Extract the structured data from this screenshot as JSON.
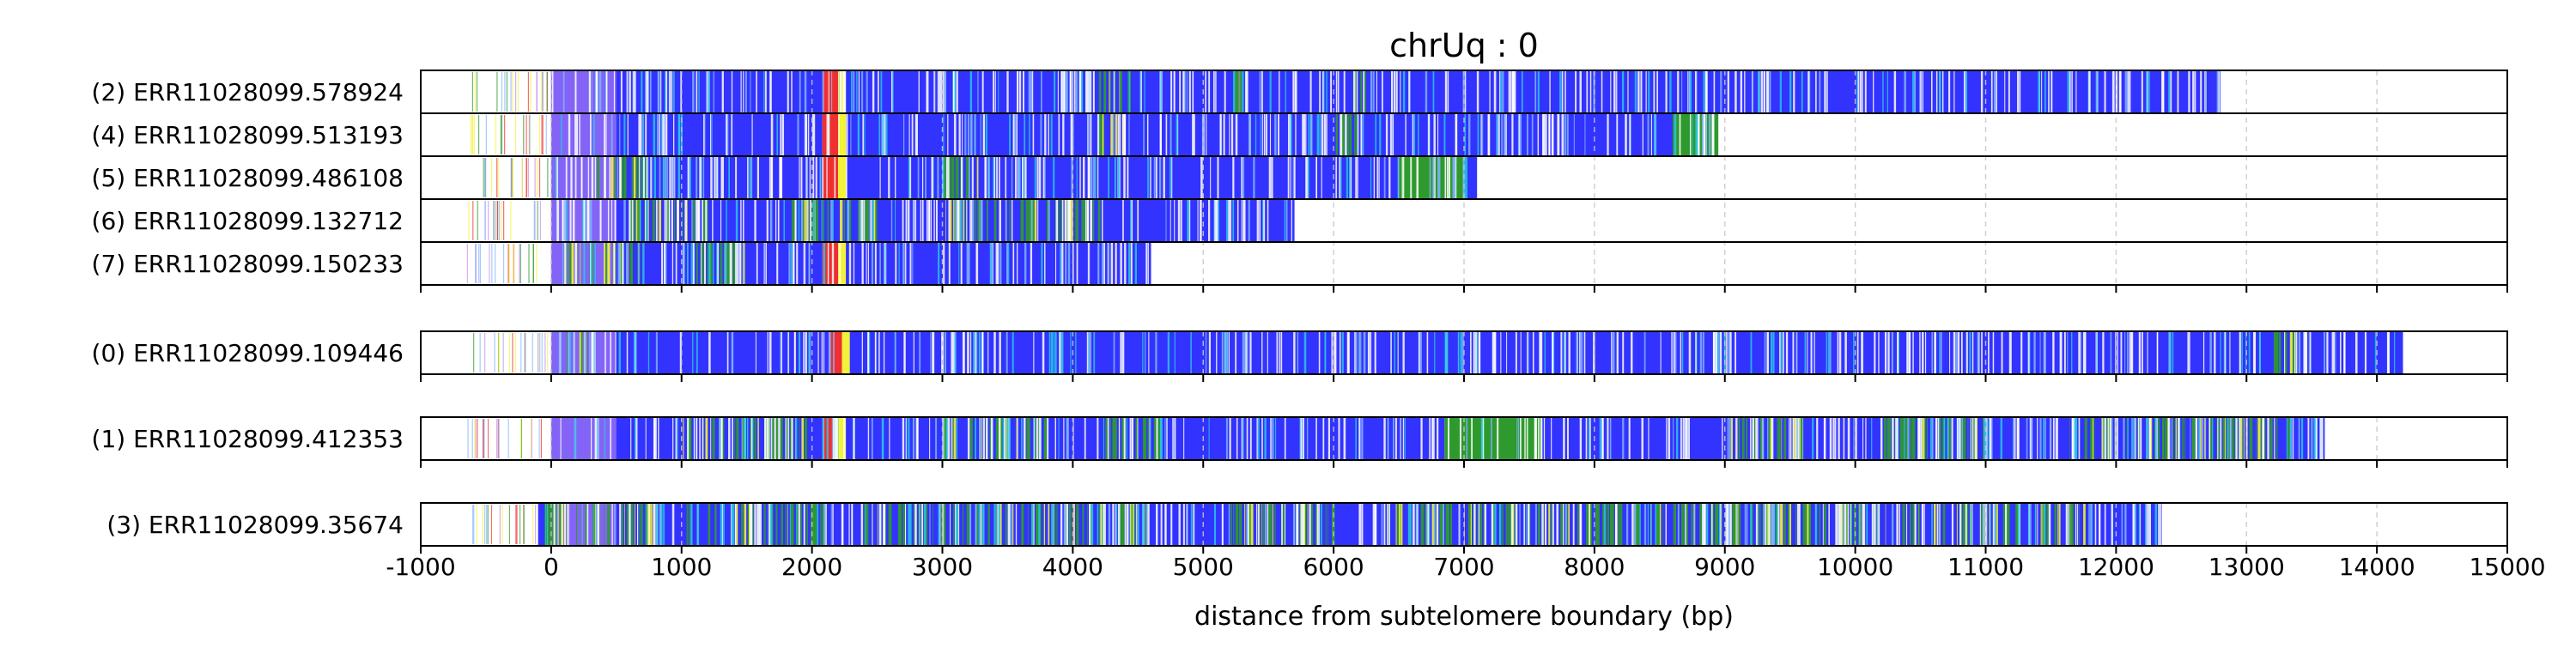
{
  "chart_data": {
    "type": "bar",
    "subtype": "read-alignment-tracks",
    "title": "chrUq : 0",
    "xlabel": "distance from subtelomere boundary (bp)",
    "ylabel": "",
    "xlim": [
      -1000,
      15000
    ],
    "xticks": [
      -1000,
      0,
      1000,
      2000,
      3000,
      4000,
      5000,
      6000,
      7000,
      8000,
      9000,
      10000,
      11000,
      12000,
      13000,
      14000,
      15000
    ],
    "grid": "vertical dashed at each 1000 bp",
    "colors": {
      "blue": "#3333ff",
      "green": "#2e9a2e",
      "yellow": "#f2f23a",
      "red": "#f03030",
      "purple": "#c58df0",
      "lightblue": "#7fb2ff",
      "cyan": "#29c6e6",
      "grid": "#c8c8c8"
    },
    "groups": [
      {
        "reads": [
          {
            "label": "(2) ERR11028099.578924",
            "end": 12800,
            "segments": [
              [
                0,
                2080,
                "blue"
              ],
              [
                2080,
                2200,
                "red"
              ],
              [
                2200,
                2260,
                "yellow"
              ],
              [
                2260,
                12800,
                "blue"
              ]
            ],
            "green_bands": [
              [
                4200,
                4450
              ],
              [
                5200,
                5350
              ],
              [
                6100,
                6250
              ]
            ]
          },
          {
            "label": "(4) ERR11028099.513193",
            "end": 8950,
            "segments": [
              [
                0,
                2080,
                "blue"
              ],
              [
                2080,
                2200,
                "red"
              ],
              [
                2200,
                2260,
                "yellow"
              ],
              [
                2260,
                8600,
                "blue"
              ],
              [
                8600,
                8950,
                "green"
              ]
            ],
            "green_bands": [
              [
                4200,
                4400
              ],
              [
                6000,
                6200
              ]
            ]
          },
          {
            "label": "(5) ERR11028099.486108",
            "end": 7100,
            "segments": [
              [
                0,
                2080,
                "blue"
              ],
              [
                2080,
                2200,
                "red"
              ],
              [
                2200,
                2260,
                "yellow"
              ],
              [
                2260,
                6500,
                "blue"
              ],
              [
                6500,
                7000,
                "green"
              ],
              [
                7000,
                7100,
                "blue"
              ]
            ],
            "green_bands": [
              [
                350,
                800
              ],
              [
                3000,
                3300
              ]
            ]
          },
          {
            "label": "(6) ERR11028099.132712",
            "end": 5700,
            "segments": [
              [
                0,
                5700,
                "blue"
              ]
            ],
            "green_bands": [
              [
                600,
                1200
              ],
              [
                1800,
                2500
              ],
              [
                3000,
                4200
              ]
            ]
          },
          {
            "label": "(7) ERR11028099.150233",
            "end": 4600,
            "segments": [
              [
                0,
                2080,
                "blue"
              ],
              [
                2080,
                2200,
                "red"
              ],
              [
                2200,
                2260,
                "yellow"
              ],
              [
                2260,
                4600,
                "blue"
              ]
            ],
            "green_bands": [
              [
                100,
                700
              ],
              [
                1100,
                1500
              ]
            ]
          }
        ]
      },
      {
        "reads": [
          {
            "label": "(0) ERR11028099.109446",
            "end": 14200,
            "segments": [
              [
                0,
                2130,
                "blue"
              ],
              [
                2130,
                2230,
                "red"
              ],
              [
                2230,
                2290,
                "yellow"
              ],
              [
                2290,
                14200,
                "blue"
              ]
            ],
            "green_bands": [
              [
                100,
                300
              ],
              [
                13200,
                13400
              ]
            ]
          }
        ]
      },
      {
        "reads": [
          {
            "label": "(1) ERR11028099.412353",
            "end": 13600,
            "segments": [
              [
                0,
                2080,
                "blue"
              ],
              [
                2080,
                2200,
                "red"
              ],
              [
                2200,
                2260,
                "yellow"
              ],
              [
                2260,
                6850,
                "blue"
              ],
              [
                6850,
                7600,
                "green"
              ],
              [
                7600,
                13600,
                "blue"
              ]
            ],
            "green_bands": [
              [
                1000,
                2000
              ],
              [
                3000,
                3800
              ],
              [
                4200,
                4700
              ],
              [
                9000,
                9600
              ],
              [
                10200,
                11000
              ],
              [
                11600,
                13400
              ]
            ]
          }
        ]
      },
      {
        "reads": [
          {
            "label": "(3) ERR11028099.35674",
            "end": 12350,
            "start": -100,
            "segments": [
              [
                -100,
                12350,
                "blue"
              ]
            ],
            "green_bands": [
              [
                -50,
                800
              ],
              [
                1000,
                2100
              ],
              [
                2400,
                4600
              ],
              [
                5200,
                6000
              ],
              [
                6400,
                8600
              ],
              [
                8600,
                9300
              ],
              [
                9300,
                9800
              ],
              [
                9800,
                10500
              ],
              [
                10600,
                11800
              ]
            ]
          }
        ]
      }
    ]
  }
}
